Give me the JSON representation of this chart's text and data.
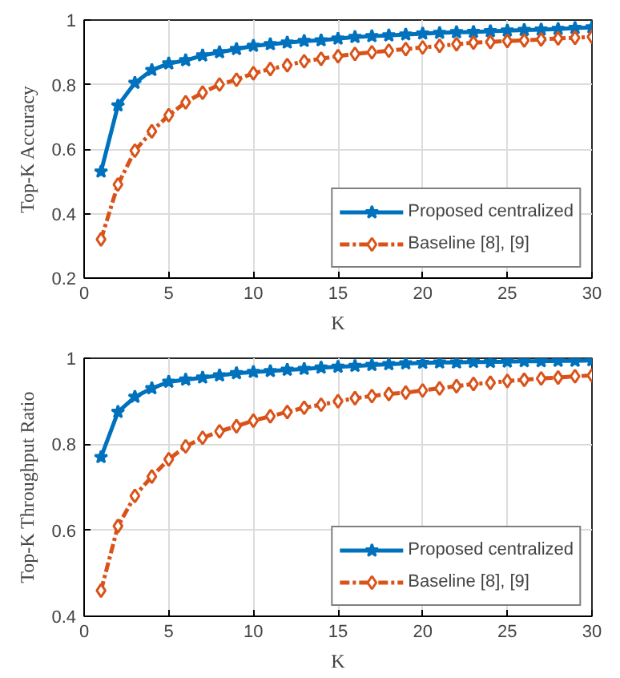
{
  "chart_data": [
    {
      "type": "line",
      "xlabel": "K",
      "ylabel": "Top-K Accuracy",
      "x": [
        1,
        2,
        3,
        4,
        5,
        6,
        7,
        8,
        9,
        10,
        11,
        12,
        13,
        14,
        15,
        16,
        17,
        18,
        19,
        20,
        21,
        22,
        23,
        24,
        25,
        26,
        27,
        28,
        29,
        30
      ],
      "xlim": [
        0,
        30
      ],
      "xticks": [
        0,
        5,
        10,
        15,
        20,
        25,
        30
      ],
      "ylim": [
        0.2,
        1
      ],
      "yticks": [
        0.2,
        0.4,
        0.6,
        0.8,
        1
      ],
      "grid": true,
      "legend": "bottom right",
      "series": [
        {
          "name": "Proposed centralized",
          "color": "#0072bd",
          "marker": "star",
          "line_style": "solid",
          "values": [
            0.53,
            0.735,
            0.805,
            0.845,
            0.865,
            0.875,
            0.89,
            0.9,
            0.91,
            0.92,
            0.925,
            0.93,
            0.935,
            0.937,
            0.942,
            0.947,
            0.95,
            0.952,
            0.955,
            0.958,
            0.96,
            0.962,
            0.963,
            0.965,
            0.967,
            0.969,
            0.97,
            0.972,
            0.975,
            0.977
          ]
        },
        {
          "name": "Baseline [8], [9]",
          "color": "#d95319",
          "marker": "diamond",
          "line_style": "dashed",
          "values": [
            0.32,
            0.49,
            0.595,
            0.655,
            0.705,
            0.745,
            0.775,
            0.8,
            0.815,
            0.835,
            0.848,
            0.86,
            0.872,
            0.88,
            0.888,
            0.895,
            0.9,
            0.905,
            0.91,
            0.915,
            0.92,
            0.925,
            0.93,
            0.932,
            0.935,
            0.937,
            0.94,
            0.943,
            0.945,
            0.948
          ]
        }
      ]
    },
    {
      "type": "line",
      "xlabel": "K",
      "ylabel": "Top-K Throughput Ratio",
      "x": [
        1,
        2,
        3,
        4,
        5,
        6,
        7,
        8,
        9,
        10,
        11,
        12,
        13,
        14,
        15,
        16,
        17,
        18,
        19,
        20,
        21,
        22,
        23,
        24,
        25,
        26,
        27,
        28,
        29,
        30
      ],
      "xlim": [
        0,
        30
      ],
      "xticks": [
        0,
        5,
        10,
        15,
        20,
        25,
        30
      ],
      "ylim": [
        0.4,
        1
      ],
      "yticks": [
        0.4,
        0.6,
        0.8,
        1
      ],
      "grid": true,
      "legend": "bottom right",
      "series": [
        {
          "name": "Proposed centralized",
          "color": "#0072bd",
          "marker": "star",
          "line_style": "solid",
          "values": [
            0.77,
            0.875,
            0.91,
            0.93,
            0.945,
            0.95,
            0.955,
            0.96,
            0.965,
            0.968,
            0.97,
            0.973,
            0.975,
            0.978,
            0.98,
            0.982,
            0.984,
            0.986,
            0.988,
            0.989,
            0.99,
            0.99,
            0.991,
            0.991,
            0.992,
            0.993,
            0.993,
            0.994,
            0.994,
            0.995
          ]
        },
        {
          "name": "Baseline [8], [9]",
          "color": "#d95319",
          "marker": "diamond",
          "line_style": "dashed",
          "values": [
            0.46,
            0.61,
            0.68,
            0.725,
            0.765,
            0.795,
            0.815,
            0.83,
            0.842,
            0.855,
            0.865,
            0.875,
            0.885,
            0.892,
            0.9,
            0.907,
            0.912,
            0.917,
            0.92,
            0.925,
            0.93,
            0.935,
            0.94,
            0.943,
            0.947,
            0.95,
            0.953,
            0.955,
            0.958,
            0.96
          ]
        }
      ]
    }
  ]
}
